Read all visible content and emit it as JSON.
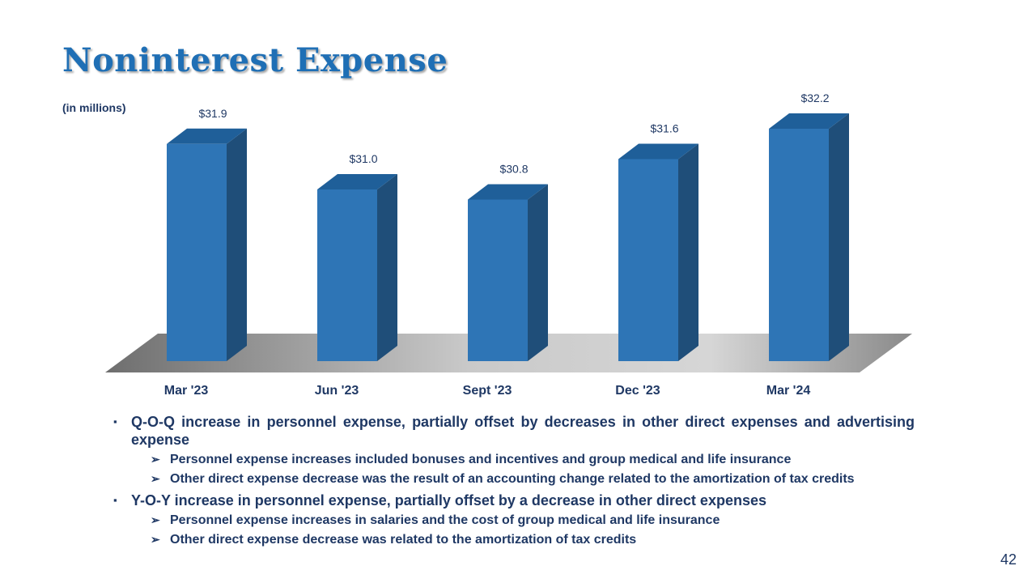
{
  "slide": {
    "title": "Noninterest Expense",
    "subtitle": "(in millions)",
    "page_number": "42"
  },
  "chart_data": {
    "type": "bar",
    "categories": [
      "Mar '23",
      "Jun '23",
      "Sept '23",
      "Dec '23",
      "Mar '24"
    ],
    "values": [
      31.9,
      31.0,
      30.8,
      31.6,
      32.2
    ],
    "value_labels": [
      "$31.9",
      "$31.0",
      "$30.8",
      "$31.6",
      "$32.2"
    ],
    "title": "",
    "xlabel": "",
    "ylabel": "",
    "grid": false,
    "legend": "none",
    "style": "3d-column",
    "colors": {
      "bar_front": "#2E75B6",
      "bar_side": "#1F4E79",
      "bar_top": "#1F5F99"
    }
  },
  "bullets": [
    {
      "text": "Q-O-Q increase in personnel expense, partially offset by decreases in other direct expenses and advertising expense",
      "sub": [
        "Personnel expense increases included bonuses and incentives and group medical and life insurance",
        "Other direct expense decrease was the result of an accounting change related to the amortization of tax credits"
      ]
    },
    {
      "text": "Y-O-Y increase in personnel expense, partially offset by a decrease in other direct expenses",
      "sub": [
        "Personnel expense increases in salaries and the cost of group medical and life insurance",
        "Other direct expense decrease was related to the amortization of tax credits"
      ]
    }
  ],
  "markers": {
    "bullet": "▪",
    "sub_bullet": "➢"
  }
}
